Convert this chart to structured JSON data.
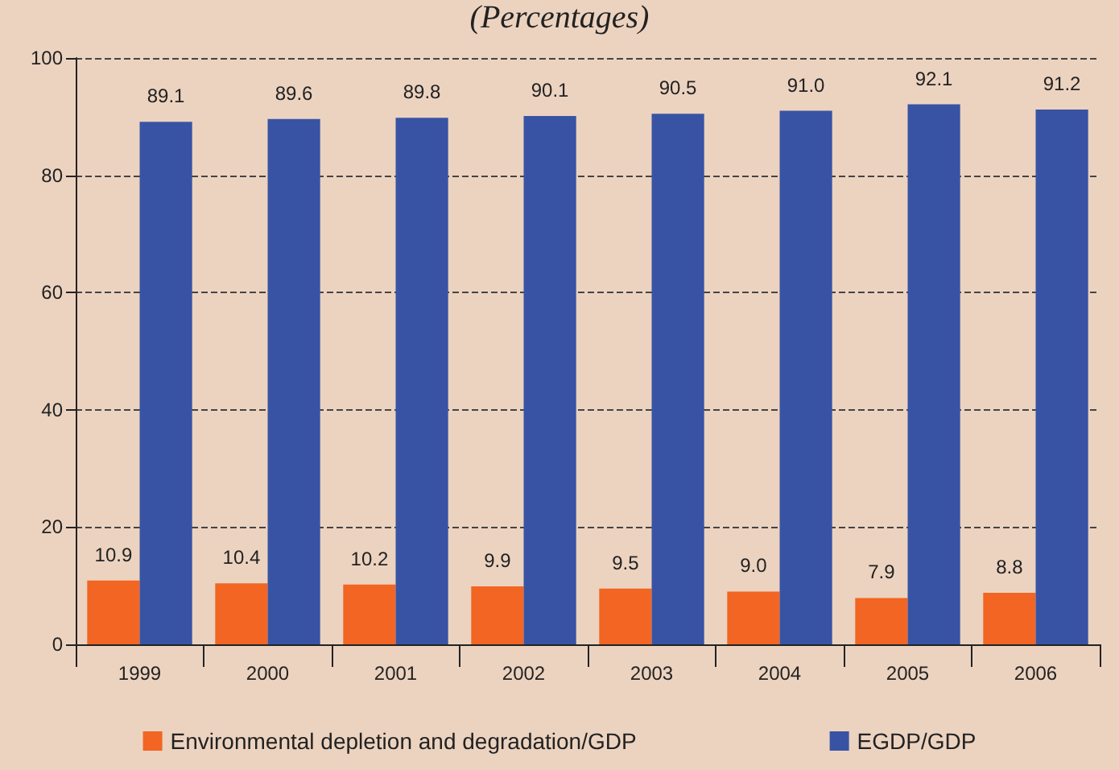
{
  "chart_data": {
    "type": "bar",
    "title": "(Percentages)",
    "categories": [
      "1999",
      "2000",
      "2001",
      "2002",
      "2003",
      "2004",
      "2005",
      "2006"
    ],
    "series": [
      {
        "name": "Environmental depletion and degradation/GDP",
        "color": "#f26522",
        "values": [
          10.9,
          10.4,
          10.2,
          9.9,
          9.5,
          9.0,
          7.9,
          8.8
        ],
        "value_labels": [
          "10.9",
          "10.4",
          "10.2",
          "9.9",
          "9.5",
          "9.0",
          "7.9",
          "8.8"
        ]
      },
      {
        "name": "EGDP/GDP",
        "color": "#3953a4",
        "values": [
          89.1,
          89.6,
          89.8,
          90.1,
          90.5,
          91.0,
          92.1,
          91.2
        ],
        "value_labels": [
          "89.1",
          "89.6",
          "89.8",
          "90.1",
          "90.5",
          "91.0",
          "92.1",
          "91.2"
        ]
      }
    ],
    "ylim": [
      0,
      100
    ],
    "yticks": [
      0,
      20,
      40,
      60,
      80,
      100
    ],
    "grid": "y",
    "legend": "bottom"
  }
}
